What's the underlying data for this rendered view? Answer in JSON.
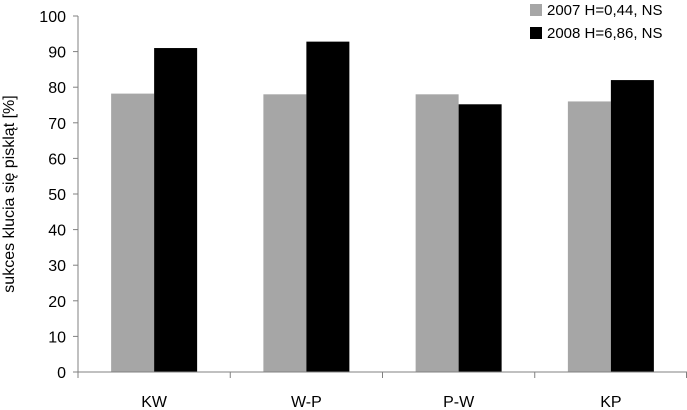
{
  "chart_data": {
    "type": "bar",
    "categories": [
      "KW",
      "W-P",
      "P-W",
      "KP"
    ],
    "series": [
      {
        "name": "2007 H=0,44, NS",
        "values": [
          78.2,
          78.0,
          78.0,
          76.0
        ],
        "color": "#a6a6a6"
      },
      {
        "name": "2008 H=6,86, NS",
        "values": [
          91.0,
          92.8,
          75.2,
          82.0
        ],
        "color": "#000000"
      }
    ],
    "ylabel": "sukces klucia się piskląt [%]",
    "xlabel": "",
    "ylim": [
      0,
      100
    ],
    "yticks": [
      "0",
      "10",
      "20",
      "30",
      "40",
      "50",
      "60",
      "70",
      "80",
      "90",
      "100"
    ],
    "grid": false,
    "legend": "top-right"
  }
}
